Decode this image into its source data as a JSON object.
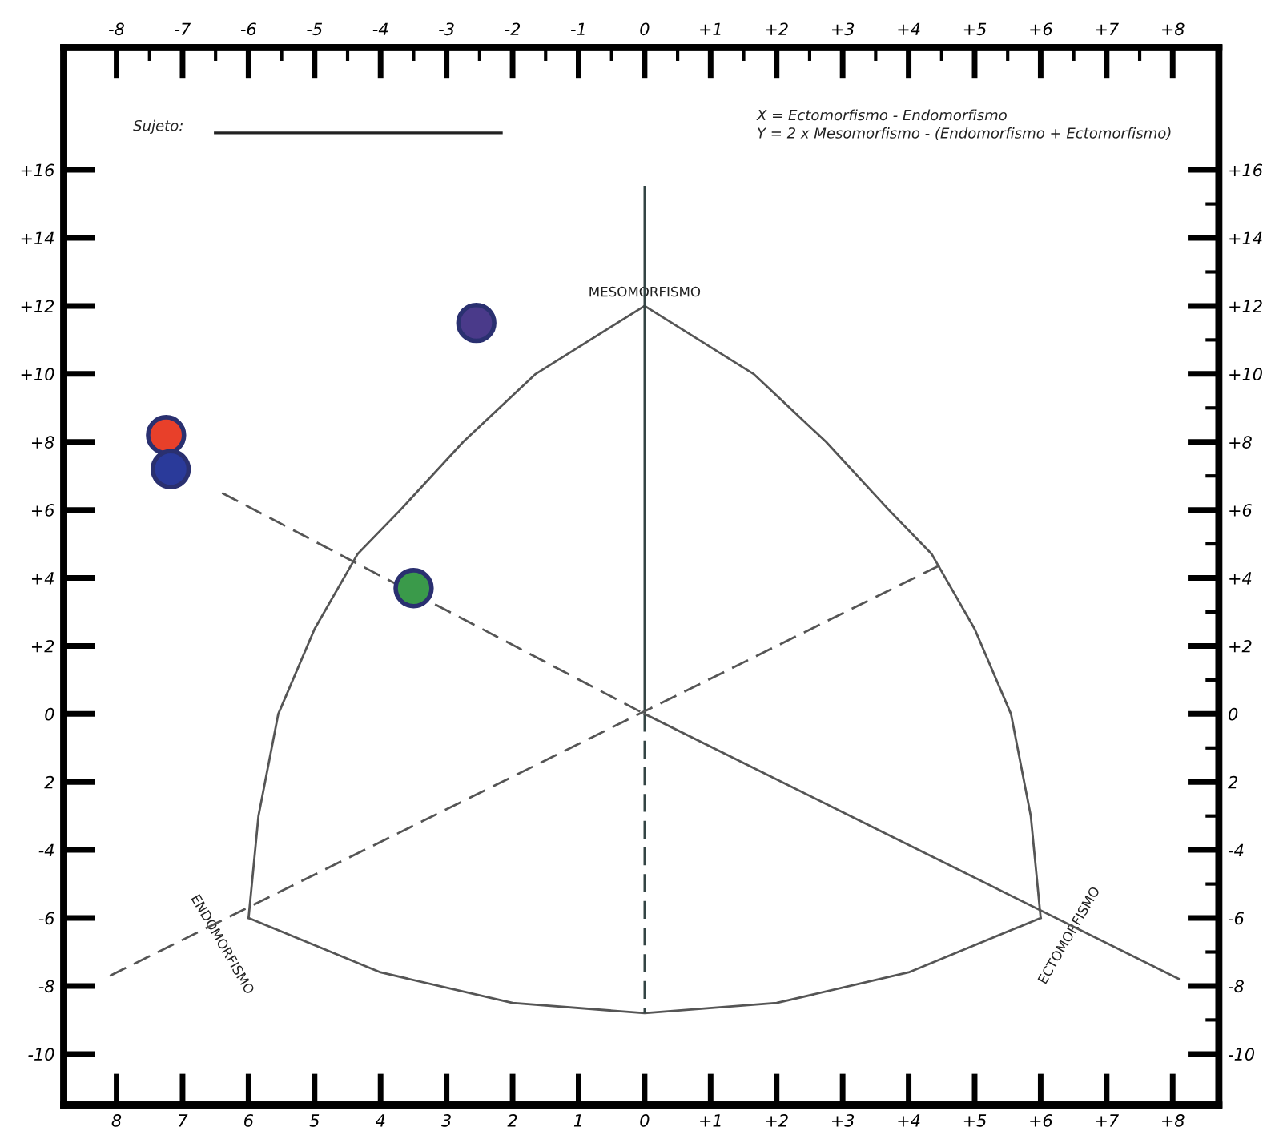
{
  "chart_data": {
    "type": "scatter",
    "xlim": [
      -8.8,
      8.7
    ],
    "ylim": [
      -11.5,
      19.6
    ],
    "y2lim": [
      -11.5,
      19.6
    ],
    "x2lim": [
      -8.8,
      8.7
    ],
    "xticks": [
      {
        "value": -8,
        "label": "8"
      },
      {
        "value": -7,
        "label": "7"
      },
      {
        "value": -6,
        "label": "6"
      },
      {
        "value": -5,
        "label": "5"
      },
      {
        "value": -4,
        "label": "4"
      },
      {
        "value": -3,
        "label": "3"
      },
      {
        "value": -2,
        "label": "2"
      },
      {
        "value": -1,
        "label": "1"
      },
      0,
      {
        "value": 1,
        "label": "+1"
      },
      {
        "value": 2,
        "label": "+2"
      },
      {
        "value": 3,
        "label": "+3"
      },
      {
        "value": 4,
        "label": "+4"
      },
      {
        "value": 5,
        "label": "+5"
      },
      {
        "value": 6,
        "label": "+6"
      },
      {
        "value": 7,
        "label": "+7"
      },
      {
        "value": 8,
        "label": "+8"
      }
    ],
    "x2ticks": [
      -8,
      -7,
      -6,
      -5,
      -4,
      -3,
      -2,
      -1,
      0,
      {
        "value": 1,
        "label": "+1"
      },
      {
        "value": 2,
        "label": "+2"
      },
      {
        "value": 3,
        "label": "+3"
      },
      {
        "value": 4,
        "label": "+4"
      },
      {
        "value": 5,
        "label": "+5"
      },
      {
        "value": 6,
        "label": "+6"
      },
      {
        "value": 7,
        "label": "+7"
      },
      {
        "value": 8,
        "label": "+8"
      }
    ],
    "yticks": [
      -10,
      -8,
      -6,
      -4,
      {
        "value": -2,
        "label": "2"
      },
      0,
      {
        "value": 2,
        "label": "+2"
      },
      {
        "value": 4,
        "label": "+4"
      },
      {
        "value": 6,
        "label": "+6"
      },
      {
        "value": 8,
        "label": "+8"
      },
      {
        "value": 10,
        "label": "+10"
      },
      {
        "value": 12,
        "label": "+12"
      },
      {
        "value": 14,
        "label": "+14"
      },
      {
        "value": 16,
        "label": "+16"
      }
    ],
    "y2ticks": [
      -10,
      -8,
      -6,
      -4,
      {
        "value": -2,
        "label": "2"
      },
      0,
      {
        "value": 2,
        "label": "+2"
      },
      {
        "value": 4,
        "label": "+4"
      },
      {
        "value": 6,
        "label": "+6"
      },
      {
        "value": 8,
        "label": "+8"
      },
      {
        "value": 10,
        "label": "+10"
      },
      {
        "value": 12,
        "label": "+12"
      },
      {
        "value": 14,
        "label": "+14"
      },
      {
        "value": 16,
        "label": "+16"
      }
    ],
    "grid": false,
    "legend": false,
    "series": [
      {
        "type": "line",
        "color": "#555555",
        "line_style": "solid",
        "marker": "none",
        "x": [
          0,
          -1.65,
          -2.75,
          -3.7,
          -4.35,
          -5.0,
          -5.55,
          -5.85,
          -6
        ],
        "values": [
          12,
          10,
          8,
          6,
          4.7,
          2.5,
          0,
          -3,
          -6
        ]
      },
      {
        "type": "line",
        "color": "#555555",
        "line_style": "solid",
        "marker": "none",
        "x": [
          0,
          1.65,
          2.75,
          3.7,
          4.35,
          5.0,
          5.55,
          5.85,
          6
        ],
        "values": [
          12,
          10,
          8,
          6,
          4.7,
          2.5,
          0,
          -3,
          -6
        ]
      },
      {
        "type": "line",
        "color": "#555555",
        "line_style": "solid",
        "marker": "none",
        "x": [
          -6,
          -4,
          -2,
          0,
          2,
          4,
          6
        ],
        "values": [
          -6,
          -7.6,
          -8.5,
          -8.8,
          -8.5,
          -7.6,
          -6
        ]
      },
      {
        "type": "line",
        "color": "#334444",
        "line_style": "solid",
        "marker": "none",
        "x": [
          0,
          0
        ],
        "values": [
          15.5,
          0
        ]
      },
      {
        "type": "line",
        "color": "#334444",
        "line_style": "dashed",
        "marker": "none",
        "x": [
          0,
          0
        ],
        "values": [
          0,
          -8.8
        ]
      },
      {
        "type": "line",
        "color": "#555555",
        "line_style": "dashed",
        "marker": "none",
        "x": [
          -6.4,
          0
        ],
        "values": [
          6.5,
          0
        ]
      },
      {
        "type": "line",
        "color": "#555555",
        "line_style": "solid",
        "marker": "none",
        "x": [
          0,
          8.1
        ],
        "values": [
          0,
          -7.8
        ]
      },
      {
        "type": "line",
        "color": "#555555",
        "line_style": "dashed",
        "marker": "none",
        "x": [
          -8.1,
          4.5
        ],
        "values": [
          -7.7,
          4.4
        ]
      },
      {
        "marker": "circle",
        "x": [
          -2.55,
          -7.25,
          -7.18,
          -3.5
        ],
        "values": [
          11.5,
          8.2,
          7.2,
          3.7
        ],
        "colors": [
          "#4a3a8a",
          "#e8402a",
          "#2a3a9a",
          "#3a9a4a"
        ]
      }
    ],
    "annotations": [
      "Sujeto:",
      "X = Ectomorfismo - Endomorfismo",
      "Y = 2 x Mesomorfismo - (Endomorfismo + Ectomorfismo)",
      {
        "text": "MESOMORFISMO",
        "x": 0,
        "y": 12
      },
      {
        "text": "ENDOMORFISMO",
        "x": -6,
        "y": -6
      },
      {
        "text": "ECTOMORFISMO",
        "x": 6,
        "y": -6
      }
    ]
  }
}
